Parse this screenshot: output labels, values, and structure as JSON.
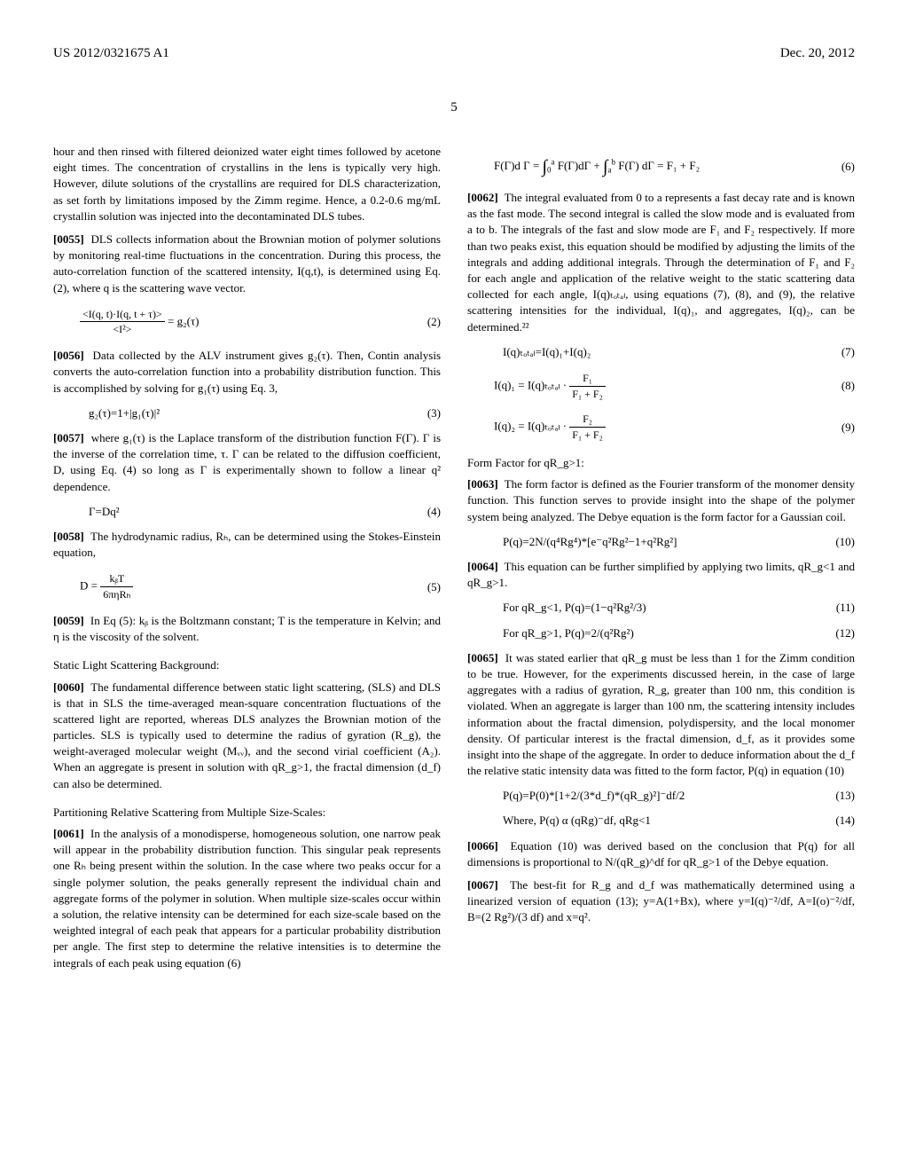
{
  "header": {
    "left": "US 2012/0321675 A1",
    "right": "Dec. 20, 2012"
  },
  "page_number": "5",
  "left_col": {
    "p_intro": "hour and then rinsed with filtered deionized water eight times followed by acetone eight times. The concentration of crystallins in the lens is typically very high. However, dilute solutions of the crystallins are required for DLS characterization, as set forth by limitations imposed by the Zimm regime. Hence, a 0.2-0.6 mg/mL crystallin solution was injected into the decontaminated DLS tubes.",
    "p0055_num": "[0055]",
    "p0055": "DLS collects information about the Brownian motion of polymer solutions by monitoring real-time fluctuations in the concentration. During this process, the auto-correlation function of the scattered intensity, I(q,t), is determined using Eq. (2), where q is the scattering wave vector.",
    "eq2_num": "<I(q, t)·I(q, t + τ)>",
    "eq2_den": "<I²>",
    "eq2_tail": " = g₂(τ)",
    "eq2_label": "(2)",
    "p0056_num": "[0056]",
    "p0056": "Data collected by the ALV instrument gives g₂(τ). Then, Contin analysis converts the auto-correlation function into a probability distribution function. This is accomplished by solving for g₁(τ) using Eq. 3,",
    "eq3": "g₂(τ)=1+|g₁(τ)|²",
    "eq3_label": "(3)",
    "p0057_num": "[0057]",
    "p0057": "where g₁(τ) is the Laplace transform of the distribution function F(Γ). Γ is the inverse of the correlation time, τ. Γ can be related to the diffusion coefficient, D, using Eq. (4) so long as Γ is experimentally shown to follow a linear q² dependence.",
    "eq4": "Γ=Dq²",
    "eq4_label": "(4)",
    "p0058_num": "[0058]",
    "p0058": "The hydrodynamic radius, Rₕ, can be determined using the Stokes-Einstein equation,",
    "eq5_lhs": "D = ",
    "eq5_num": "kᵦT",
    "eq5_den": "6πηRₕ",
    "eq5_label": "(5)",
    "p0059_num": "[0059]",
    "p0059": "In Eq (5): kᵦ is the Boltzmann constant; T is the temperature in Kelvin; and η is the viscosity of the solvent.",
    "sls_head": "Static Light Scattering Background:",
    "p0060_num": "[0060]",
    "p0060": "The fundamental difference between static light scattering, (SLS) and DLS is that in SLS the time-averaged mean-square concentration fluctuations of the scattered light are reported, whereas DLS analyzes the Brownian motion of the particles. SLS is typically used to determine the radius of gyration (R_g), the weight-averaged molecular weight (Mᵥᵥ), and the second virial coefficient (A₂). When an aggregate is present in solution with qR_g>1, the fractal dimension (d_f) can also be determined.",
    "part_head": "Partitioning Relative Scattering from Multiple Size-Scales:",
    "p0061_num": "[0061]",
    "p0061": "In the analysis of a monodisperse, homogeneous solution, one narrow peak will appear in the probability distribution function. This singular peak represents one Rₕ being present within the solution. In the case where two peaks occur for a single polymer solution, the peaks generally represent the individual chain and aggregate forms of the polymer in solution. When multiple size-scales occur within a solution, the relative intensity can be determined for each size-scale based on the weighted integral of each peak that appears for a particular probability distribution per angle. The first step to determine the relative intensities is to determine the integrals of each peak using equation (6)"
  },
  "right_col": {
    "eq6_lhs": "F(Γ)d Γ = ",
    "eq6_mid": " F(Γ)dΓ + ",
    "eq6_tail": " F(Γ) dΓ = F₁ + F₂",
    "eq6_label": "(6)",
    "p0062_num": "[0062]",
    "p0062": "The integral evaluated from 0 to a represents a fast decay rate and is known as the fast mode. The second integral is called the slow mode and is evaluated from a to b. The integrals of the fast and slow mode are F₁ and F₂ respectively. If more than two peaks exist, this equation should be modified by adjusting the limits of the integrals and adding additional integrals. Through the determination of F₁ and F₂ for each angle and application of the relative weight to the static scattering data collected for each angle, I(q)ₜₒₜₐₗ, using equations (7), (8), and (9), the relative scattering intensities for the individual, I(q)₁, and aggregates, I(q)₂, can be determined.²²",
    "eq7": "I(q)ₜₒₜₐₗ=I(q)₁+I(q)₂",
    "eq7_label": "(7)",
    "eq8_lhs": "I(q)₁ = I(q)ₜₒₜₐₗ · ",
    "eq8_num": "F₁",
    "eq8_den": "F₁ + F₂",
    "eq8_label": "(8)",
    "eq9_lhs": "I(q)₂ = I(q)ₜₒₜₐₗ · ",
    "eq9_num": "F₂",
    "eq9_den": "F₁ + F₂",
    "eq9_label": "(9)",
    "ff_head": "Form Factor for qR_g>1:",
    "p0063_num": "[0063]",
    "p0063": "The form factor is defined as the Fourier transform of the monomer density function. This function serves to provide insight into the shape of the polymer system being analyzed. The Debye equation is the form factor for a Gaussian coil.",
    "eq10": "P(q)=2N/(q⁴Rg⁴)*[e⁻q²Rg²−1+q²Rg²]",
    "eq10_label": "(10)",
    "p0064_num": "[0064]",
    "p0064": "This equation can be further simplified by applying two limits, qR_g<1 and qR_g>1.",
    "eq11": "For qR_g<1, P(q)=(1−q²Rg²/3)",
    "eq11_label": "(11)",
    "eq12": "For qR_g>1, P(q)=2/(q²Rg²)",
    "eq12_label": "(12)",
    "p0065_num": "[0065]",
    "p0065": "It was stated earlier that qR_g must be less than 1 for the Zimm condition to be true. However, for the experiments discussed herein, in the case of large aggregates with a radius of gyration, R_g, greater than 100 nm, this condition is violated. When an aggregate is larger than 100 nm, the scattering intensity includes information about the fractal dimension, polydispersity, and the local monomer density. Of particular interest is the fractal dimension, d_f, as it provides some insight into the shape of the aggregate. In order to deduce information about the d_f the relative static intensity data was fitted to the form factor, P(q) in equation (10)",
    "eq13": "P(q)=P(0)*[1+2/(3*d_f)*(qR_g)²]⁻df/2",
    "eq13_label": "(13)",
    "eq14": "Where, P(q) α (qRg)⁻df, qRg<1",
    "eq14_label": "(14)",
    "p0066_num": "[0066]",
    "p0066": "Equation (10) was derived based on the conclusion that P(q) for all dimensions is proportional to N/(qR_g)^df for qR_g>1 of the Debye equation.",
    "p0067_num": "[0067]",
    "p0067": "The best-fit for R_g and d_f was mathematically determined using a linearized version of equation (13); y=A(1+Bx), where y=I(q)⁻²/df, A=I(o)⁻²/df, B=(2 Rg²)/(3 df) and x=q²."
  }
}
